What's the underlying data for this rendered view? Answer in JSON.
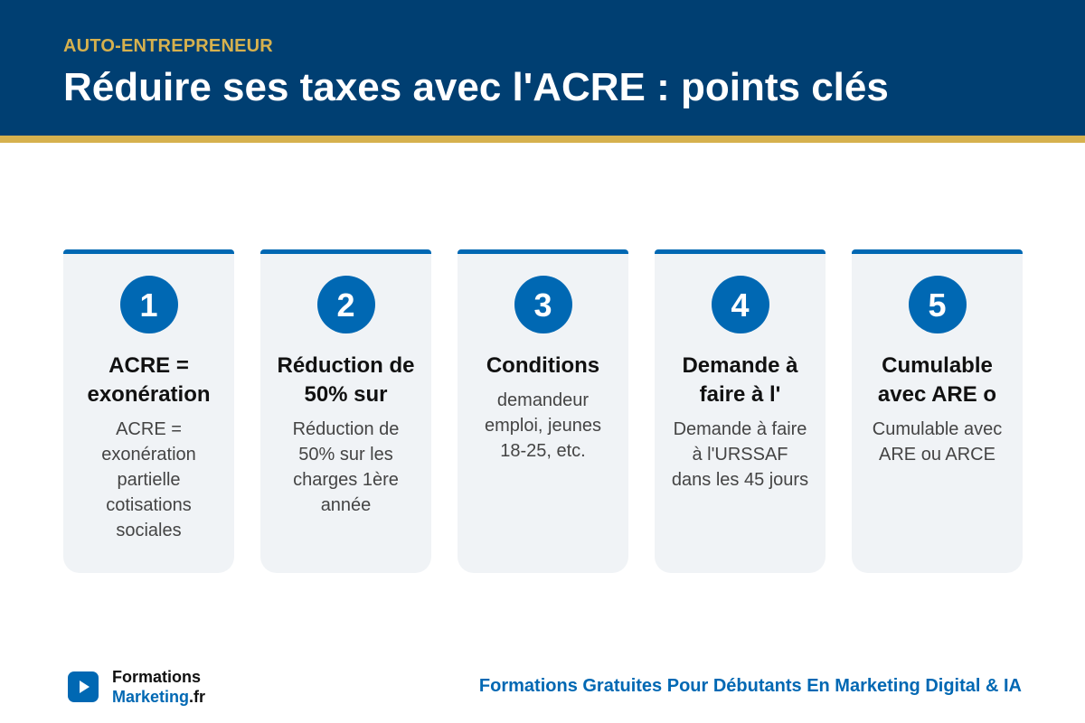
{
  "header": {
    "kicker": "AUTO-ENTREPRENEUR",
    "title": "Réduire ses taxes avec l'ACRE : points clés"
  },
  "cards": [
    {
      "number": "1",
      "title": "ACRE = exonération",
      "text": "ACRE = exonération partielle cotisations sociales"
    },
    {
      "number": "2",
      "title": "Réduction de 50% sur",
      "text": "Réduction de 50% sur les charges 1ère année"
    },
    {
      "number": "3",
      "title": "Conditions",
      "text": "demandeur emploi, jeunes 18-25, etc."
    },
    {
      "number": "4",
      "title": "Demande à faire à l'",
      "text": "Demande à faire à l'URSSAF dans les 45 jours"
    },
    {
      "number": "5",
      "title": "Cumulable avec ARE o",
      "text": "Cumulable avec ARE ou ARCE"
    }
  ],
  "footer": {
    "logo": {
      "line1": "Formations",
      "line2": "Marketing",
      "suffix": ".fr"
    },
    "tagline": "Formations Gratuites Pour Débutants En Marketing Digital & IA"
  }
}
